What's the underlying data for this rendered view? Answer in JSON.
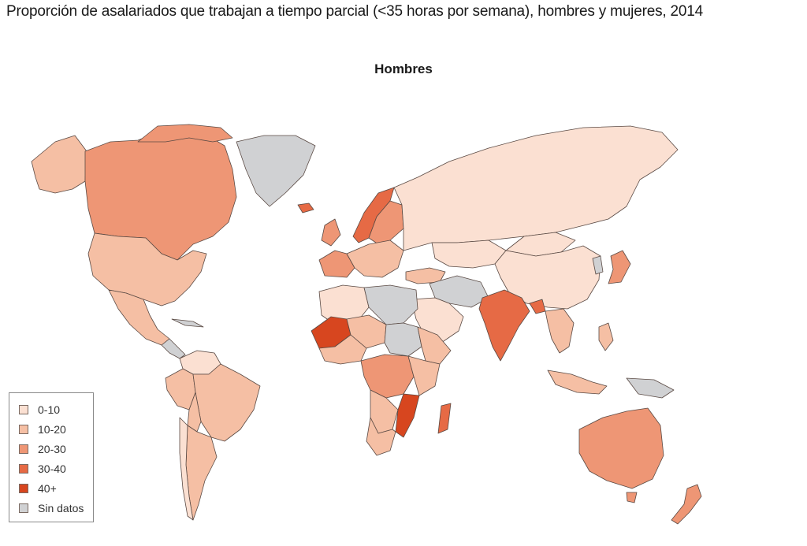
{
  "title": "Proporción de asalariados que trabajan a tiempo parcial (<35 horas por semana), hombres y mujeres, 2014",
  "subtitle": "Hombres",
  "legend": [
    {
      "label": "0-10",
      "color": "#fbe0d2"
    },
    {
      "label": "10-20",
      "color": "#f5bfa4"
    },
    {
      "label": "20-30",
      "color": "#ee9675"
    },
    {
      "label": "30-40",
      "color": "#e66a45"
    },
    {
      "label": "40+",
      "color": "#d7461f"
    },
    {
      "label": "Sin datos",
      "color": "#d0d1d3"
    }
  ]
}
